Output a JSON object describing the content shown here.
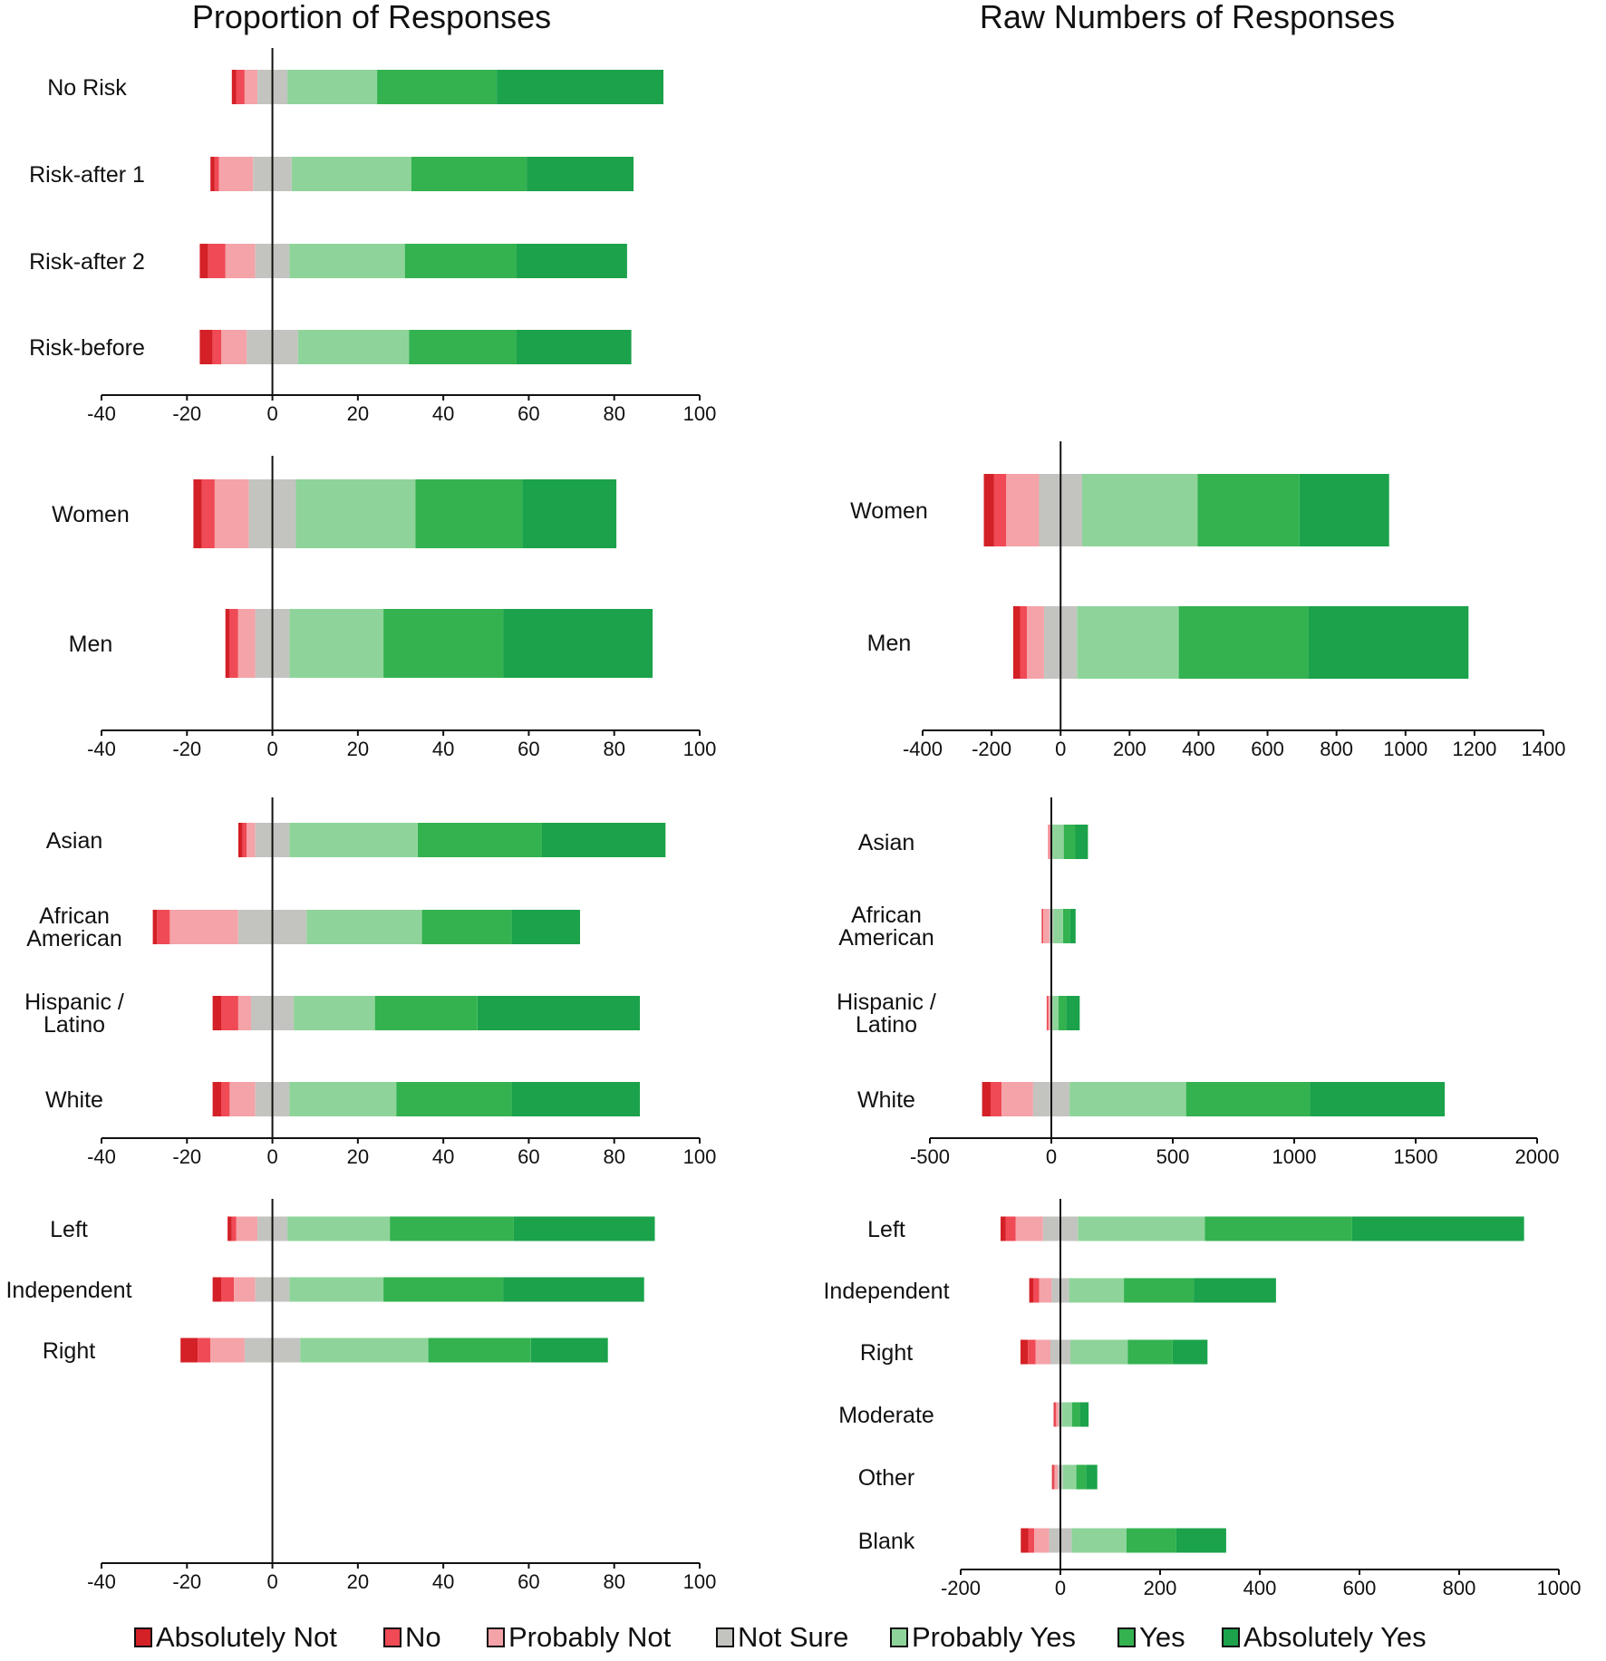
{
  "titles": {
    "left": "Proportion of Responses",
    "right": "Raw Numbers of Responses"
  },
  "legend": [
    {
      "label": "Absolutely Not",
      "color": "#d42027"
    },
    {
      "label": "No",
      "color": "#ef4a55"
    },
    {
      "label": "Probably Not",
      "color": "#f4a3a8"
    },
    {
      "label": "Not Sure",
      "color": "#c3c4c0"
    },
    {
      "label": "Probably Yes",
      "color": "#8ed49a"
    },
    {
      "label": "Yes",
      "color": "#33b24f"
    },
    {
      "label": "Absolutely Yes",
      "color": "#1ba24a"
    }
  ],
  "chart_data": [
    {
      "id": "risk-proportion",
      "type": "bar",
      "orientation": "horizontal",
      "stacked": "diverging",
      "xlim": [
        -40,
        100
      ],
      "xticks": [
        -40,
        -20,
        0,
        20,
        40,
        60,
        80,
        100
      ],
      "categories": [
        "No Risk",
        "Risk-after 1",
        "Risk-after 2",
        "Risk-before"
      ],
      "series_values": [
        [
          1,
          2,
          3,
          7,
          21,
          28,
          39
        ],
        [
          1,
          1,
          8,
          9,
          28,
          27,
          25
        ],
        [
          2,
          4,
          7,
          8,
          27,
          26,
          26
        ],
        [
          3,
          2,
          6,
          12,
          26,
          25,
          27
        ]
      ]
    },
    {
      "id": "gender-proportion",
      "type": "bar",
      "orientation": "horizontal",
      "stacked": "diverging",
      "xlim": [
        -40,
        100
      ],
      "xticks": [
        -40,
        -20,
        0,
        20,
        40,
        60,
        80,
        100
      ],
      "categories": [
        "Women",
        "Men"
      ],
      "series_values": [
        [
          2,
          3,
          8,
          11,
          28,
          25,
          22
        ],
        [
          1,
          2,
          4,
          8,
          22,
          28,
          35
        ]
      ]
    },
    {
      "id": "gender-raw",
      "type": "bar",
      "orientation": "horizontal",
      "stacked": "diverging",
      "xlim": [
        -400,
        1400
      ],
      "xticks": [
        -400,
        -200,
        0,
        200,
        400,
        600,
        800,
        1000,
        1200,
        1400
      ],
      "categories": [
        "Women",
        "Men"
      ],
      "series_values": [
        [
          30,
          35,
          95,
          125,
          335,
          295,
          260
        ],
        [
          20,
          20,
          50,
          95,
          295,
          375,
          465
        ]
      ]
    },
    {
      "id": "race-proportion",
      "type": "bar",
      "orientation": "horizontal",
      "stacked": "diverging",
      "xlim": [
        -40,
        100
      ],
      "xticks": [
        -40,
        -20,
        0,
        20,
        40,
        60,
        80,
        100
      ],
      "categories": [
        "Asian",
        "African American",
        "Hispanic / Latino",
        "White"
      ],
      "series_values": [
        [
          1,
          1,
          2,
          8,
          30,
          29,
          29
        ],
        [
          1,
          3,
          16,
          16,
          27,
          21,
          16
        ],
        [
          2,
          4,
          3,
          10,
          19,
          24,
          38
        ],
        [
          2,
          2,
          6,
          8,
          25,
          27,
          30
        ]
      ]
    },
    {
      "id": "race-raw",
      "type": "bar",
      "orientation": "horizontal",
      "stacked": "diverging",
      "xlim": [
        -500,
        2000
      ],
      "xticks": [
        -500,
        0,
        500,
        1000,
        1500,
        2000
      ],
      "categories": [
        "Asian",
        "African American",
        "Hispanic / Latino",
        "White"
      ],
      "series_values": [
        [
          1,
          3,
          6,
          6,
          48,
          48,
          52
        ],
        [
          2,
          5,
          25,
          16,
          40,
          30,
          22
        ],
        [
          2,
          4,
          8,
          10,
          25,
          32,
          55
        ],
        [
          35,
          45,
          130,
          150,
          480,
          510,
          555
        ]
      ]
    },
    {
      "id": "politics-proportion",
      "type": "bar",
      "orientation": "horizontal",
      "stacked": "diverging",
      "xlim": [
        -40,
        100
      ],
      "xticks": [
        -40,
        -20,
        0,
        20,
        40,
        60,
        80,
        100
      ],
      "categories": [
        "Left",
        "Independent",
        "Right"
      ],
      "series_values": [
        [
          1,
          1,
          5,
          7,
          24,
          29,
          33
        ],
        [
          2,
          3,
          5,
          8,
          22,
          28,
          33
        ],
        [
          4,
          3,
          8,
          13,
          30,
          24,
          18
        ]
      ]
    },
    {
      "id": "politics-raw",
      "type": "bar",
      "orientation": "horizontal",
      "stacked": "diverging",
      "xlim": [
        -200,
        1000
      ],
      "xticks": [
        -200,
        0,
        200,
        400,
        600,
        800,
        1000
      ],
      "categories": [
        "Left",
        "Independent",
        "Right",
        "Moderate",
        "Other",
        "Blank"
      ],
      "series_values": [
        [
          10,
          20,
          55,
          70,
          255,
          295,
          345
        ],
        [
          8,
          12,
          25,
          35,
          110,
          140,
          165
        ],
        [
          15,
          15,
          30,
          40,
          115,
          90,
          70
        ],
        [
          2,
          3,
          5,
          7,
          20,
          15,
          18
        ],
        [
          2,
          3,
          7,
          10,
          27,
          20,
          22
        ],
        [
          15,
          12,
          30,
          45,
          110,
          100,
          100
        ]
      ]
    }
  ]
}
